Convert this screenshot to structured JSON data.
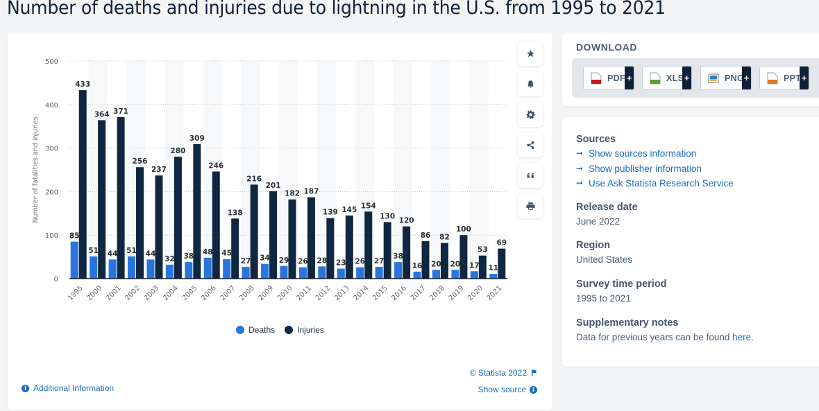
{
  "page": {
    "title": "Number of deaths and injuries due to lightning in the U.S. from 1995 to 2021"
  },
  "chart_data": {
    "type": "bar",
    "title": "Number of deaths and injuries due to lightning in the U.S. from 1995 to 2021",
    "xlabel": "",
    "ylabel": "Number of fatalities and injuries",
    "ylim": [
      0,
      500
    ],
    "yticks": [
      0,
      100,
      200,
      300,
      400,
      500
    ],
    "grid": true,
    "legend_position": "bottom-center",
    "categories": [
      "1995",
      "2000",
      "2001",
      "2002",
      "2003",
      "2004",
      "2005",
      "2006",
      "2007",
      "2008",
      "2009",
      "2010",
      "2011",
      "2012",
      "2013",
      "2014",
      "2015",
      "2016",
      "2017",
      "2018",
      "2019",
      "2020",
      "2021"
    ],
    "series": [
      {
        "name": "Deaths",
        "color": "#2876dd",
        "values": [
          85,
          51,
          44,
          51,
          44,
          32,
          38,
          48,
          45,
          27,
          34,
          29,
          26,
          28,
          23,
          26,
          27,
          38,
          16,
          20,
          20,
          17,
          11
        ]
      },
      {
        "name": "Injuries",
        "color": "#0f2740",
        "values": [
          433,
          364,
          371,
          256,
          237,
          280,
          309,
          246,
          138,
          216,
          201,
          182,
          187,
          139,
          145,
          154,
          130,
          120,
          86,
          82,
          100,
          53,
          69
        ]
      }
    ]
  },
  "chart": {
    "legend": [
      {
        "label": "Deaths",
        "color": "#2876dd"
      },
      {
        "label": "Injuries",
        "color": "#0f2740"
      }
    ],
    "copyright": "© Statista 2022",
    "show_source": "Show source",
    "additional_info": "Additional Information",
    "tools": [
      "star-icon",
      "bell-icon",
      "gear-icon",
      "share-icon",
      "quote-icon",
      "print-icon"
    ]
  },
  "download": {
    "title": "DOWNLOAD",
    "buttons": [
      {
        "label": "PDF",
        "color": "#c8161d"
      },
      {
        "label": "XLS",
        "color": "#5aa02c"
      },
      {
        "label": "PNG",
        "color": "#2d7fc1"
      },
      {
        "label": "PPT",
        "color": "#e87722"
      }
    ],
    "plus": "+"
  },
  "sources": {
    "heading": "Sources",
    "links": [
      "Show sources information",
      "Show publisher information",
      "Use Ask Statista Research Service"
    ]
  },
  "release_date": {
    "heading": "Release date",
    "value": "June 2022"
  },
  "region": {
    "heading": "Region",
    "value": "United States"
  },
  "survey_period": {
    "heading": "Survey time period",
    "value": "1995 to 2021"
  },
  "supplementary": {
    "heading": "Supplementary notes",
    "text": "Data for previous years can be found ",
    "link": "here",
    "suffix": "."
  },
  "arrow": "➞"
}
